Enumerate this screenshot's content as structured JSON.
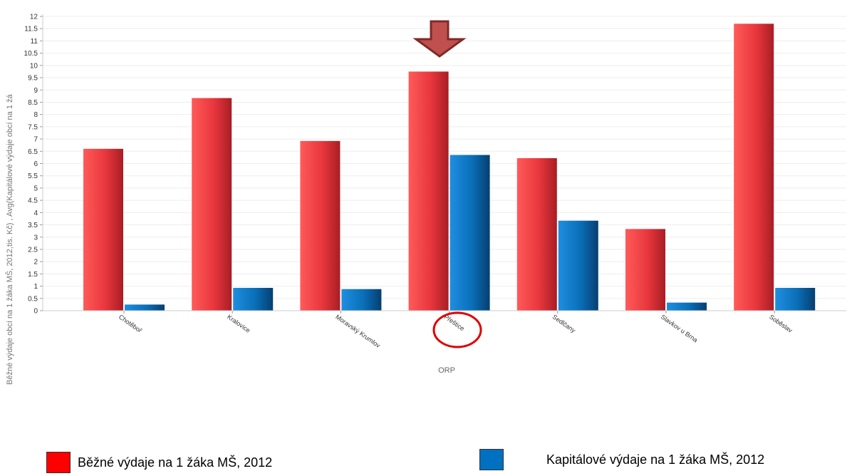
{
  "chart_data": {
    "type": "bar",
    "title": "",
    "xlabel": "ORP",
    "ylabel": "Běžné výdaje obcí na 1 žáka MŠ, 2012,tis. Kč) , Avg(Kapitálové výdaje obcí na 1 žá",
    "ylim": [
      0,
      12
    ],
    "yticks": [
      "0",
      "0.5",
      "1",
      "1.5",
      "2",
      "2.5",
      "3",
      "3.5",
      "4",
      "4.5",
      "5",
      "5.5",
      "6",
      "6.5",
      "7",
      "7.5",
      "8",
      "8.5",
      "9",
      "9.5",
      "10",
      "10.5",
      "11",
      "11.5",
      "12"
    ],
    "categories": [
      "Chotěboř",
      "Kralovice",
      "Moravský Krumlov",
      "Přeštice",
      "Sedlčany",
      "Slavkov u Brna",
      "Soběslav"
    ],
    "series": [
      {
        "name": "Běžné výdaje na 1 žáka MŠ, 2012",
        "color": "#e8373d",
        "values": [
          6.6,
          8.67,
          6.92,
          9.75,
          6.22,
          3.33,
          11.7
        ]
      },
      {
        "name": "Kapitálové výdaje na 1 žáka MŠ, 2012",
        "color": "#0a6fb8",
        "values": [
          0.25,
          0.93,
          0.88,
          6.35,
          3.67,
          0.33,
          0.93
        ]
      }
    ],
    "legend_position": "bottom",
    "grid": true,
    "annotations": {
      "highlighted_category": "Přeštice",
      "arrow_icon": "down-arrow-icon",
      "circle_icon": "highlight-circle-icon",
      "arrow_color": "#c0504d",
      "circle_color": "#e00000"
    }
  },
  "legend": {
    "red_label": "Běžné výdaje na 1 žáka MŠ, 2012",
    "blue_label": "Kapitálové výdaje na 1 žáka MŠ, 2012",
    "red_color": "#ff0000",
    "blue_color": "#0070c0"
  }
}
